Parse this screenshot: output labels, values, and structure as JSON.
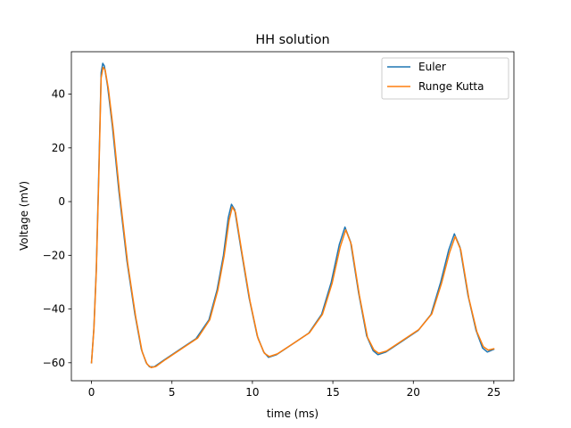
{
  "chart_data": {
    "type": "line",
    "title": "HH solution",
    "xlabel": "time (ms)",
    "ylabel": "Voltage (mV)",
    "xlim": [
      -1.25,
      26.25
    ],
    "ylim": [
      -66.7,
      55.8
    ],
    "xticks": [
      0,
      5,
      10,
      15,
      20,
      25
    ],
    "yticks": [
      -60,
      -40,
      -20,
      0,
      20,
      40
    ],
    "grid": false,
    "legend_position": "top-right",
    "series": [
      {
        "name": "Euler",
        "color": "#1f77b4",
        "points": [
          [
            0,
            -60
          ],
          [
            0.15,
            -47
          ],
          [
            0.3,
            -25
          ],
          [
            0.45,
            10
          ],
          [
            0.6,
            48
          ],
          [
            0.7,
            51.5
          ],
          [
            0.8,
            50.5
          ],
          [
            1.0,
            43
          ],
          [
            1.3,
            28
          ],
          [
            1.7,
            4
          ],
          [
            2.2,
            -22
          ],
          [
            2.7,
            -42
          ],
          [
            3.1,
            -55
          ],
          [
            3.4,
            -60
          ],
          [
            3.6,
            -61.5
          ],
          [
            3.9,
            -61.5
          ],
          [
            4.5,
            -59
          ],
          [
            5.5,
            -55
          ],
          [
            6.5,
            -51
          ],
          [
            7.3,
            -44
          ],
          [
            7.8,
            -33
          ],
          [
            8.2,
            -20
          ],
          [
            8.5,
            -6
          ],
          [
            8.7,
            -1
          ],
          [
            8.9,
            -3
          ],
          [
            9.3,
            -18
          ],
          [
            9.8,
            -36
          ],
          [
            10.3,
            -50
          ],
          [
            10.7,
            -56
          ],
          [
            11.0,
            -58
          ],
          [
            11.5,
            -57
          ],
          [
            12.5,
            -53
          ],
          [
            13.5,
            -49
          ],
          [
            14.3,
            -42
          ],
          [
            14.9,
            -30
          ],
          [
            15.4,
            -16
          ],
          [
            15.75,
            -9.5
          ],
          [
            16.1,
            -15
          ],
          [
            16.6,
            -34
          ],
          [
            17.1,
            -50
          ],
          [
            17.5,
            -55.5
          ],
          [
            17.8,
            -57
          ],
          [
            18.3,
            -56
          ],
          [
            19.3,
            -52
          ],
          [
            20.3,
            -48
          ],
          [
            21.1,
            -42
          ],
          [
            21.7,
            -30
          ],
          [
            22.2,
            -18
          ],
          [
            22.55,
            -12
          ],
          [
            22.9,
            -17
          ],
          [
            23.4,
            -35
          ],
          [
            23.9,
            -48
          ],
          [
            24.3,
            -54.5
          ],
          [
            24.6,
            -56
          ],
          [
            24.8,
            -55.5
          ],
          [
            25.0,
            -55
          ]
        ]
      },
      {
        "name": "Runge Kutta",
        "color": "#ff7f0e",
        "points": [
          [
            0,
            -60
          ],
          [
            0.15,
            -47.5
          ],
          [
            0.3,
            -26
          ],
          [
            0.45,
            8
          ],
          [
            0.6,
            46
          ],
          [
            0.72,
            50
          ],
          [
            0.85,
            49
          ],
          [
            1.05,
            42
          ],
          [
            1.35,
            27
          ],
          [
            1.75,
            3
          ],
          [
            2.25,
            -23
          ],
          [
            2.75,
            -43
          ],
          [
            3.15,
            -56
          ],
          [
            3.45,
            -60.5
          ],
          [
            3.7,
            -61.8
          ],
          [
            4.0,
            -61.4
          ],
          [
            4.6,
            -58.8
          ],
          [
            5.6,
            -54.8
          ],
          [
            6.6,
            -50.8
          ],
          [
            7.35,
            -44
          ],
          [
            7.85,
            -33
          ],
          [
            8.25,
            -20
          ],
          [
            8.55,
            -7
          ],
          [
            8.75,
            -2
          ],
          [
            8.95,
            -4
          ],
          [
            9.35,
            -19
          ],
          [
            9.85,
            -37
          ],
          [
            10.35,
            -51
          ],
          [
            10.75,
            -56.5
          ],
          [
            11.05,
            -57.7
          ],
          [
            11.55,
            -56.7
          ],
          [
            12.55,
            -52.8
          ],
          [
            13.55,
            -48.8
          ],
          [
            14.35,
            -42
          ],
          [
            14.95,
            -30.5
          ],
          [
            15.45,
            -17
          ],
          [
            15.8,
            -10.5
          ],
          [
            16.15,
            -16
          ],
          [
            16.65,
            -35
          ],
          [
            17.15,
            -50.5
          ],
          [
            17.55,
            -55.2
          ],
          [
            17.85,
            -56.5
          ],
          [
            18.35,
            -55.6
          ],
          [
            19.35,
            -51.6
          ],
          [
            20.35,
            -47.6
          ],
          [
            21.15,
            -41.8
          ],
          [
            21.75,
            -30.5
          ],
          [
            22.25,
            -19
          ],
          [
            22.6,
            -13
          ],
          [
            22.95,
            -18
          ],
          [
            23.45,
            -36
          ],
          [
            23.95,
            -48.5
          ],
          [
            24.35,
            -54
          ],
          [
            24.65,
            -55.3
          ],
          [
            24.85,
            -55
          ],
          [
            25.0,
            -54.8
          ]
        ]
      }
    ]
  }
}
